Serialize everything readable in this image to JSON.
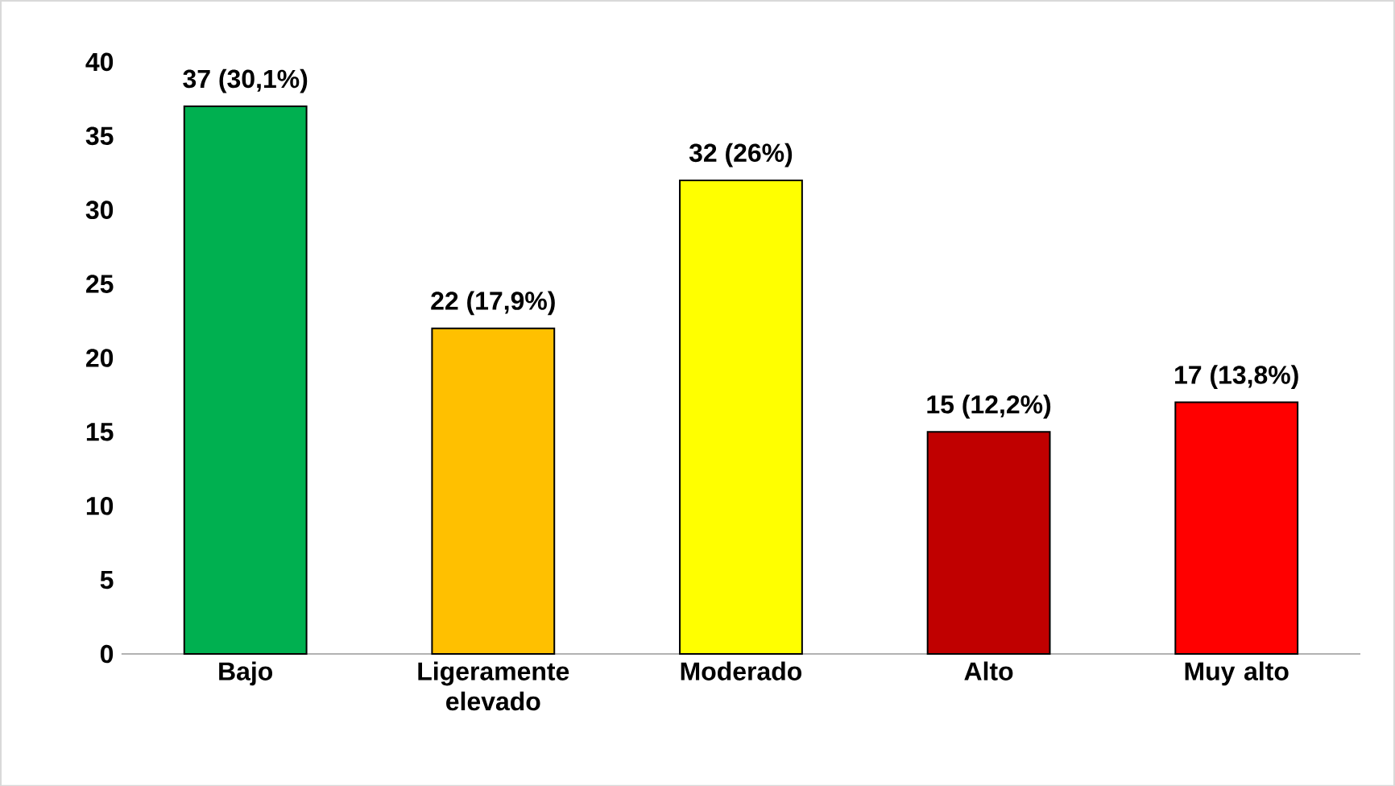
{
  "chart_data": {
    "type": "bar",
    "categories": [
      "Bajo",
      "Ligeramente elevado",
      "Moderado",
      "Alto",
      "Muy alto"
    ],
    "values": [
      37,
      22,
      32,
      15,
      17
    ],
    "colors": [
      "#00b050",
      "#ffc000",
      "#ffff00",
      "#c00000",
      "#ff0000"
    ],
    "value_labels": [
      "37 (30,1%)",
      "22 (17,9%)",
      "32 (26%)",
      "15 (12,2%)",
      "17 (13,8%)"
    ],
    "ylim": [
      0,
      40
    ],
    "yticks": [
      0,
      5,
      10,
      15,
      20,
      25,
      30,
      35,
      40
    ]
  }
}
